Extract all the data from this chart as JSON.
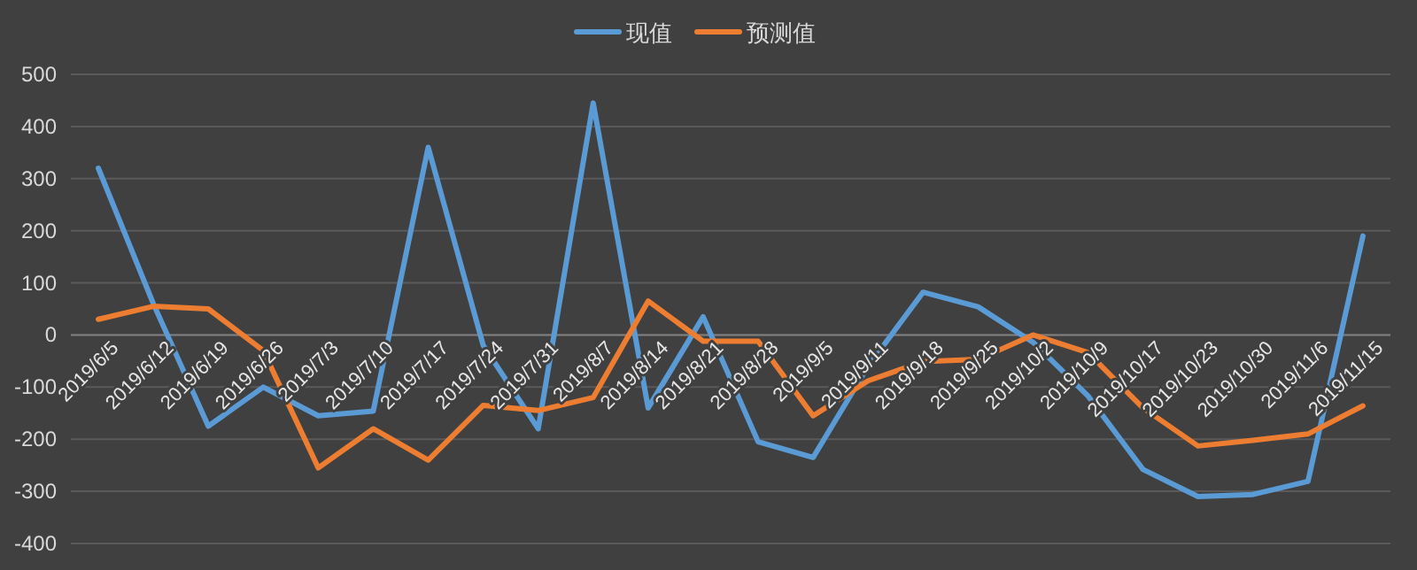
{
  "chart_data": {
    "type": "line",
    "categories": [
      "2019/6/5",
      "2019/6/12",
      "2019/6/19",
      "2019/6/26",
      "2019/7/3",
      "2019/7/10",
      "2019/7/17",
      "2019/7/24",
      "2019/7/31",
      "2019/8/7",
      "2019/8/14",
      "2019/8/21",
      "2019/8/28",
      "2019/9/5",
      "2019/9/11",
      "2019/9/18",
      "2019/9/25",
      "2019/10/2",
      "2019/10/9",
      "2019/10/17",
      "2019/10/23",
      "2019/10/30",
      "2019/11/6",
      "2019/11/15"
    ],
    "series": [
      {
        "name": "现值",
        "color": "#5b9bd5",
        "values": [
          320,
          60,
          -175,
          -100,
          -155,
          -146,
          360,
          -20,
          -180,
          445,
          -140,
          35,
          -205,
          -235,
          -60,
          82,
          54,
          -14,
          -117,
          -258,
          -310,
          -306,
          -281,
          190
        ]
      },
      {
        "name": "预测值",
        "color": "#ed7d31",
        "values": [
          30,
          55,
          50,
          -30,
          -255,
          -180,
          -240,
          -135,
          -145,
          -120,
          65,
          -12,
          -12,
          -155,
          -88,
          -51,
          -47,
          0,
          -34,
          -140,
          -213,
          -202,
          -190,
          -136
        ]
      }
    ],
    "ylim": [
      -400,
      500
    ],
    "yticks": [
      -400,
      -300,
      -200,
      -100,
      0,
      100,
      200,
      300,
      400,
      500
    ],
    "grid": "y",
    "legend": "top",
    "marker": "none",
    "line_style": "solid"
  }
}
